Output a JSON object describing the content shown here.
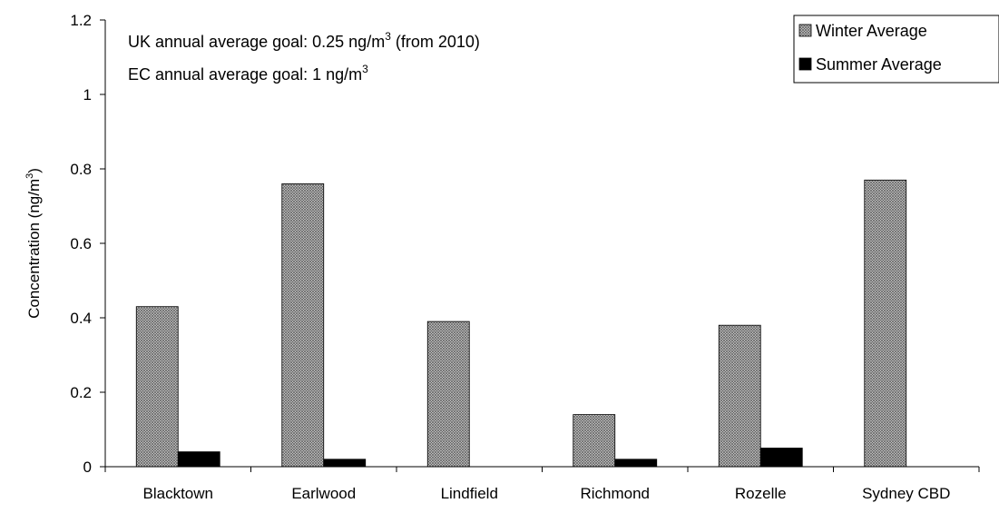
{
  "chart_data": {
    "type": "bar",
    "categories": [
      "Blacktown",
      "Earlwood",
      "Lindfield",
      "Richmond",
      "Rozelle",
      "Sydney CBD"
    ],
    "series": [
      {
        "name": "Winter Average",
        "values": [
          0.43,
          0.76,
          0.39,
          0.14,
          0.38,
          0.77
        ],
        "pattern": "cross-hatch"
      },
      {
        "name": "Summer Average",
        "values": [
          0.04,
          0.02,
          0.0,
          0.02,
          0.05,
          0.0
        ],
        "color": "#000000"
      }
    ],
    "ylabel": "Concentration (ng/m",
    "ylabel_sup": "3",
    "ylabel_tail": ")",
    "ylim": [
      0,
      1.2
    ],
    "yticks": [
      "0",
      "0.2",
      "0.4",
      "0.6",
      "0.8",
      "1",
      "1.2"
    ],
    "grid": false,
    "legend_position": "top-right",
    "annotations": [
      {
        "text": "UK annual average goal: 0.25 ng/m",
        "sup": "3",
        "tail": " (from 2010)"
      },
      {
        "text": "EC annual average goal: 1 ng/m",
        "sup": "3",
        "tail": ""
      }
    ]
  }
}
